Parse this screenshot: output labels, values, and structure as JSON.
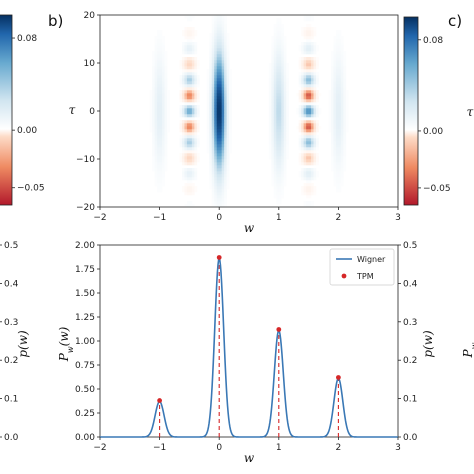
{
  "panel_labels": {
    "b": "b)",
    "c": "c)"
  },
  "colors": {
    "heat_neg": "#c0392b",
    "heat_zero": "#ffffff",
    "heat_pos": "#08306b",
    "wigner": "#3a78b5",
    "tpm": "#d62728"
  },
  "chart_data": [
    {
      "type": "heatmap",
      "xlabel": "w",
      "ylabel": "τ",
      "xlim": [
        -2,
        3
      ],
      "ylim": [
        -20,
        20
      ],
      "x_ticks": [
        "−2",
        "−1",
        "0",
        "1",
        "2",
        "3"
      ],
      "y_ticks": [
        "−20",
        "−10",
        "0",
        "10",
        "20"
      ],
      "colorbar": {
        "ticks": [
          "0.08",
          "0.00",
          "−0.05"
        ],
        "range": [
          -0.065,
          0.1
        ],
        "colormap": "RdBu"
      },
      "features": [
        {
          "w": 0.0,
          "sign": "positive",
          "peak": 0.1
        },
        {
          "w": -1.0,
          "sign": "positive",
          "peak": 0.015
        },
        {
          "w": 1.0,
          "sign": "positive",
          "peak": 0.03
        },
        {
          "w": 2.0,
          "sign": "positive",
          "peak": 0.015
        },
        {
          "w": -0.5,
          "sign": "oscillating",
          "peak": 0.05
        },
        {
          "w": 1.5,
          "sign": "oscillating",
          "peak": 0.06
        }
      ]
    },
    {
      "type": "line",
      "xlabel": "w",
      "ylabel": "P_w(w)",
      "ylabel_right": "p(w)",
      "xlim": [
        -2,
        3
      ],
      "ylim": [
        0,
        2.0
      ],
      "ylim_right": [
        0,
        0.5
      ],
      "x_ticks": [
        "−2",
        "−1",
        "0",
        "1",
        "2",
        "3"
      ],
      "y_ticks": [
        "0.00",
        "0.25",
        "0.50",
        "0.75",
        "1.00",
        "1.25",
        "1.50",
        "1.75",
        "2.00"
      ],
      "y_ticks_right": [
        "0.0",
        "0.1",
        "0.2",
        "0.3",
        "0.4",
        "0.5"
      ],
      "legend_position": "top-right",
      "series": [
        {
          "name": "Wigner",
          "kind": "line",
          "peaks": [
            {
              "x": -1,
              "y": 0.37
            },
            {
              "x": 0,
              "y": 1.86
            },
            {
              "x": 1,
              "y": 1.11
            },
            {
              "x": 2,
              "y": 0.61
            }
          ],
          "sigma": 0.075
        },
        {
          "name": "TPM",
          "kind": "scatter",
          "x": [
            -1,
            0,
            1,
            2
          ],
          "y": [
            0.38,
            1.87,
            1.12,
            0.62
          ]
        }
      ]
    },
    {
      "type": "line",
      "ylabel": "p(w)",
      "ylim": [
        0,
        0.5
      ],
      "y_ticks": [
        "0.0",
        "0.1",
        "0.2",
        "0.3",
        "0.4",
        "0.5"
      ]
    },
    {
      "type": "line",
      "ylabel": "P_w(w)",
      "note": "partially cropped neighbouring panel"
    }
  ]
}
